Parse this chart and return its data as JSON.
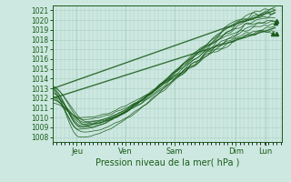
{
  "xlabel": "Pression niveau de la mer( hPa )",
  "ylim": [
    1007.5,
    1021.5
  ],
  "yticks": [
    1008,
    1009,
    1010,
    1011,
    1012,
    1013,
    1014,
    1015,
    1016,
    1017,
    1018,
    1019,
    1020,
    1021
  ],
  "day_labels": [
    "Jeu",
    "Ven",
    "Sam",
    "Dim",
    "Lun"
  ],
  "day_positions": [
    0.5,
    1.5,
    2.5,
    3.75,
    4.35
  ],
  "xlim": [
    0.0,
    4.7
  ],
  "background_color": "#cde8e0",
  "grid_color": "#aacfc5",
  "line_color": "#1a5c1a",
  "xlabel_fontsize": 7,
  "ytick_fontsize": 5.5,
  "xtick_fontsize": 6
}
